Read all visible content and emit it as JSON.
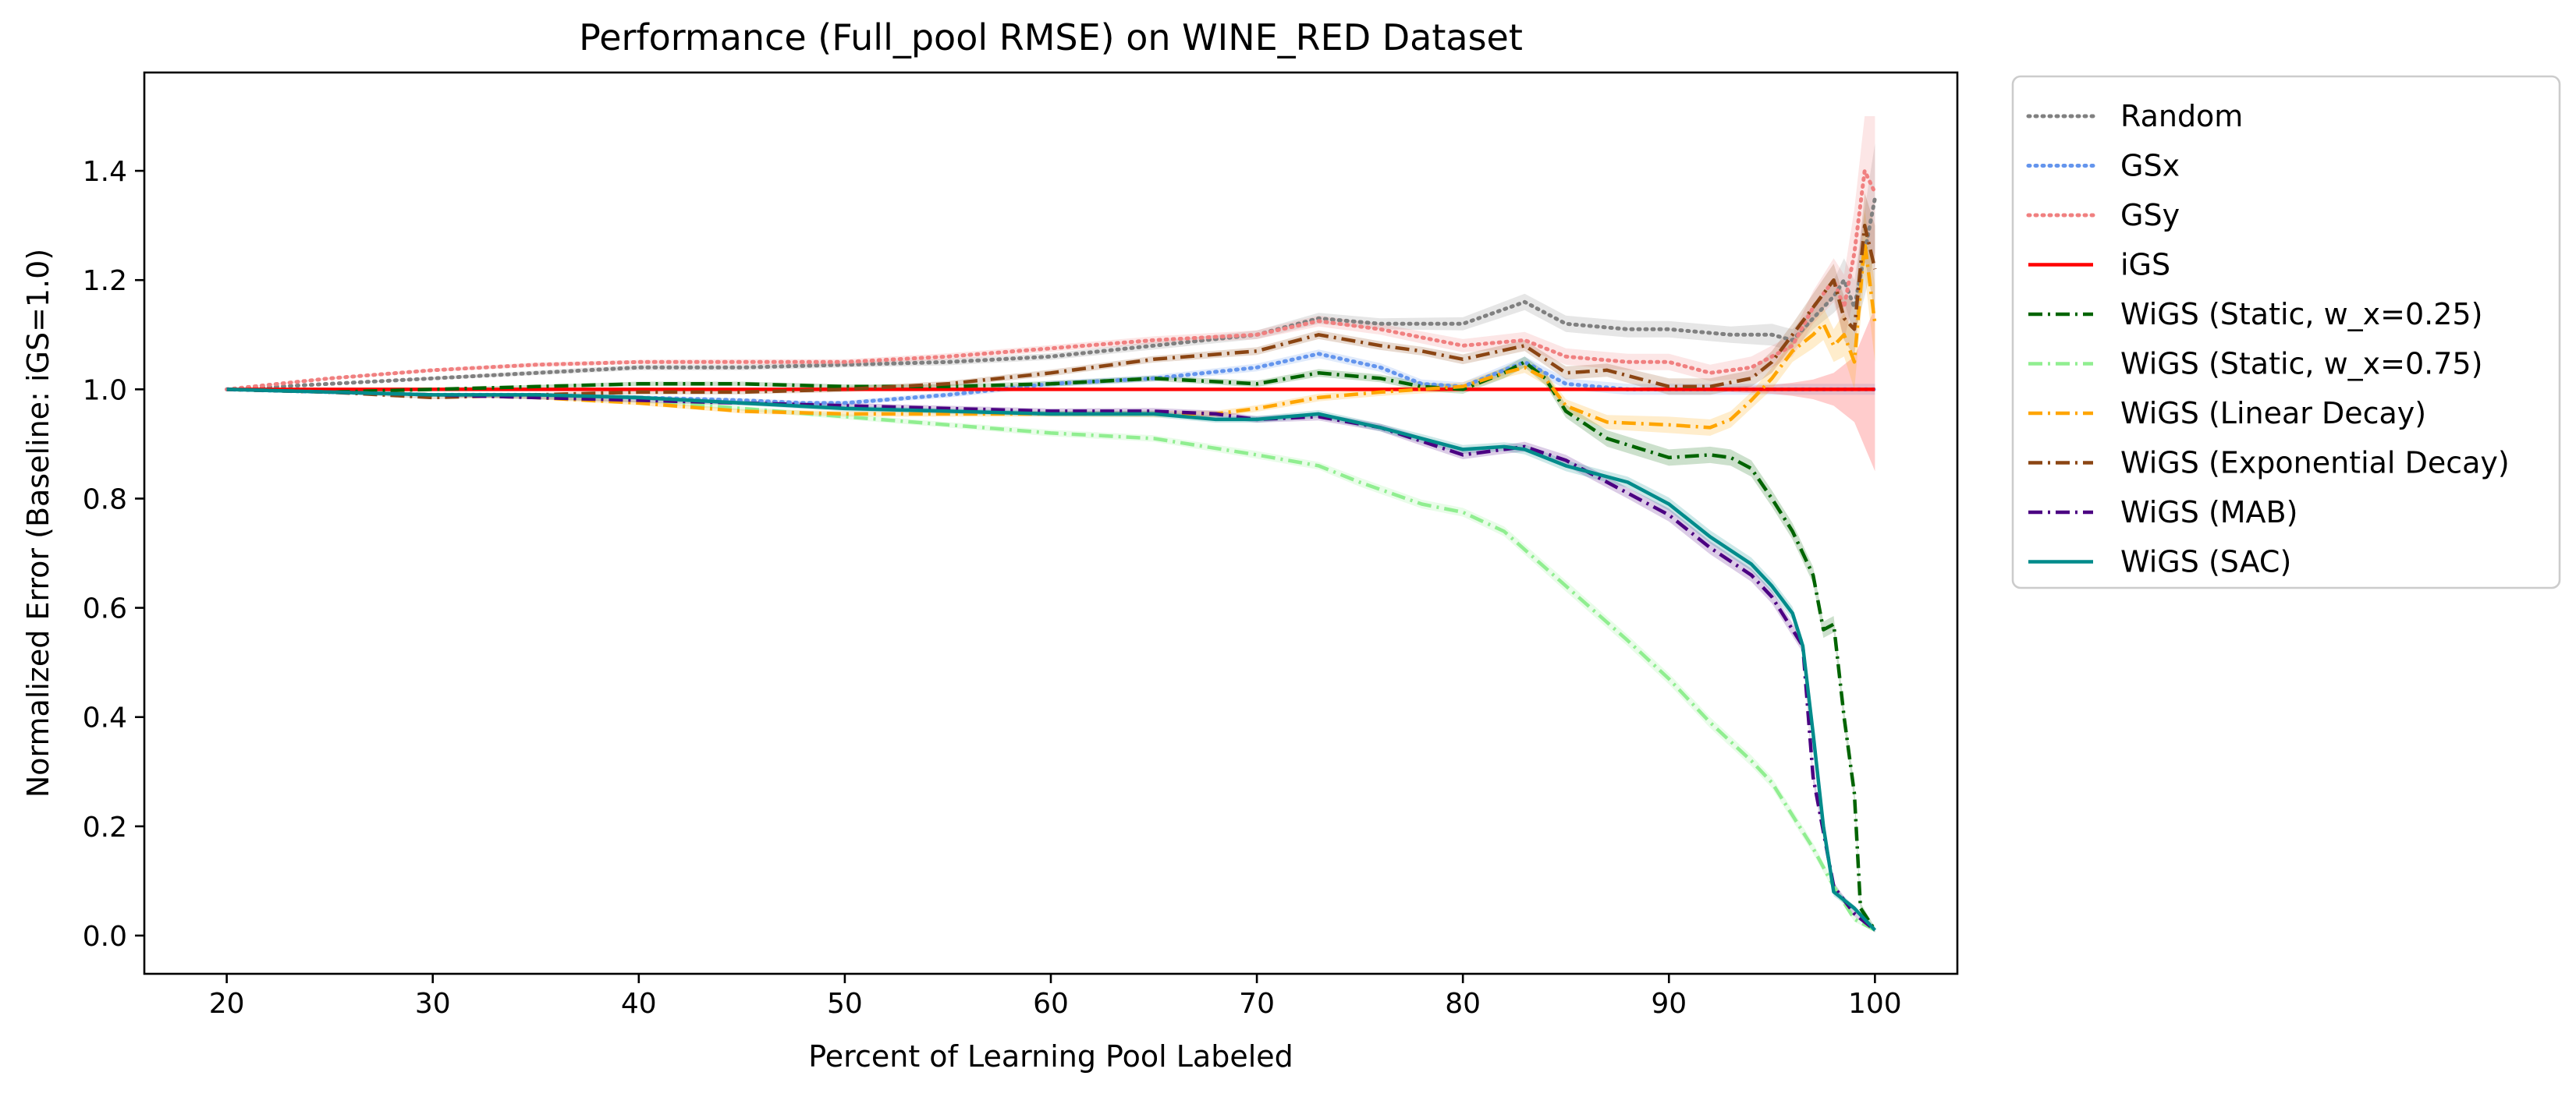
{
  "chart_data": {
    "type": "line",
    "title": "Performance (Full_pool RMSE) on WINE_RED Dataset",
    "xlabel": "Percent of Learning Pool Labeled",
    "ylabel": "Normalized Error (Baseline: iGS=1.0)",
    "xlim": [
      16,
      104
    ],
    "ylim": [
      -0.07,
      1.58
    ],
    "xticks": [
      20,
      30,
      40,
      50,
      60,
      70,
      80,
      90,
      100
    ],
    "yticks": [
      0.0,
      0.2,
      0.4,
      0.6,
      0.8,
      1.0,
      1.2,
      1.4
    ],
    "xtick_labels": [
      "20",
      "30",
      "40",
      "50",
      "60",
      "70",
      "80",
      "90",
      "100"
    ],
    "ytick_labels": [
      "0.0",
      "0.2",
      "0.4",
      "0.6",
      "0.8",
      "1.0",
      "1.2",
      "1.4"
    ],
    "grid": false,
    "legend_position": "outside-right-top",
    "series": [
      {
        "name": "Random",
        "color": "#808080",
        "linestyle": "dotted",
        "x": [
          20,
          25,
          30,
          35,
          40,
          45,
          50,
          55,
          60,
          65,
          70,
          73,
          76,
          80,
          83,
          85,
          88,
          90,
          93,
          95,
          96,
          97,
          98,
          98.5,
          99,
          99.5,
          100
        ],
        "y": [
          1.0,
          1.01,
          1.02,
          1.03,
          1.04,
          1.04,
          1.045,
          1.05,
          1.06,
          1.08,
          1.1,
          1.13,
          1.12,
          1.12,
          1.16,
          1.12,
          1.11,
          1.11,
          1.1,
          1.1,
          1.09,
          1.13,
          1.17,
          1.2,
          1.15,
          1.25,
          1.35
        ],
        "band": [
          0.0,
          0.0,
          0.003,
          0.004,
          0.005,
          0.005,
          0.005,
          0.006,
          0.006,
          0.007,
          0.008,
          0.01,
          0.01,
          0.012,
          0.015,
          0.015,
          0.015,
          0.015,
          0.015,
          0.02,
          0.02,
          0.02,
          0.03,
          0.04,
          0.05,
          0.08,
          0.1
        ]
      },
      {
        "name": "GSx",
        "color": "#6495ED",
        "linestyle": "dotted",
        "x": [
          20,
          25,
          30,
          35,
          40,
          45,
          48,
          50,
          55,
          60,
          65,
          70,
          73,
          76,
          78,
          80,
          83,
          85,
          88,
          90,
          93,
          95,
          96,
          97,
          98,
          99,
          100
        ],
        "y": [
          1.0,
          0.995,
          0.99,
          0.99,
          0.985,
          0.98,
          0.975,
          0.975,
          0.99,
          1.01,
          1.02,
          1.04,
          1.065,
          1.04,
          1.01,
          1.005,
          1.05,
          1.01,
          1.0,
          1.0,
          1.0,
          1.0,
          1.0,
          1.0,
          1.0,
          1.0,
          1.0
        ],
        "band": [
          0.0,
          0.002,
          0.003,
          0.003,
          0.004,
          0.004,
          0.004,
          0.004,
          0.005,
          0.006,
          0.006,
          0.007,
          0.008,
          0.008,
          0.008,
          0.008,
          0.01,
          0.01,
          0.01,
          0.01,
          0.01,
          0.01,
          0.01,
          0.01,
          0.01,
          0.01,
          0.01
        ]
      },
      {
        "name": "GSy",
        "color": "#F08080",
        "linestyle": "dotted",
        "x": [
          20,
          25,
          30,
          35,
          40,
          45,
          50,
          55,
          60,
          65,
          70,
          73,
          76,
          80,
          83,
          85,
          88,
          90,
          92,
          94,
          95,
          96,
          97,
          98,
          98.5,
          99,
          99.5,
          100
        ],
        "y": [
          1.0,
          1.02,
          1.035,
          1.045,
          1.05,
          1.05,
          1.05,
          1.06,
          1.075,
          1.09,
          1.1,
          1.125,
          1.11,
          1.08,
          1.09,
          1.06,
          1.05,
          1.05,
          1.03,
          1.04,
          1.06,
          1.08,
          1.15,
          1.2,
          1.15,
          1.25,
          1.4,
          1.36
        ],
        "band": [
          0.0,
          0.002,
          0.003,
          0.004,
          0.004,
          0.005,
          0.005,
          0.006,
          0.006,
          0.007,
          0.008,
          0.01,
          0.01,
          0.012,
          0.015,
          0.015,
          0.015,
          0.015,
          0.015,
          0.02,
          0.02,
          0.02,
          0.03,
          0.04,
          0.06,
          0.08,
          0.1,
          0.14
        ]
      },
      {
        "name": "iGS",
        "color": "#FF0000",
        "linestyle": "solid",
        "x": [
          20,
          100
        ],
        "y": [
          1.0,
          1.0
        ],
        "band_x": [
          20,
          80,
          90,
          93,
          95,
          96,
          97,
          98,
          99,
          100
        ],
        "band": [
          0.0,
          0.0,
          0.0,
          0.005,
          0.008,
          0.012,
          0.018,
          0.03,
          0.06,
          0.15
        ]
      },
      {
        "name": "WiGS (Static, w_x=0.25)",
        "color": "#006400",
        "linestyle": "dashdot",
        "x": [
          20,
          25,
          30,
          35,
          40,
          45,
          50,
          55,
          60,
          65,
          70,
          73,
          76,
          78,
          80,
          82,
          83,
          84,
          85,
          87,
          90,
          92,
          93,
          94,
          95,
          96,
          97,
          97.5,
          98,
          98.5,
          99,
          99.3,
          100
        ],
        "y": [
          1.0,
          0.995,
          1.0,
          1.005,
          1.01,
          1.01,
          1.005,
          1.005,
          1.01,
          1.02,
          1.01,
          1.03,
          1.02,
          1.005,
          1.0,
          1.03,
          1.05,
          1.02,
          0.96,
          0.91,
          0.875,
          0.88,
          0.875,
          0.855,
          0.8,
          0.74,
          0.66,
          0.56,
          0.57,
          0.4,
          0.26,
          0.05,
          0.01
        ],
        "band": [
          0.0,
          0.002,
          0.003,
          0.003,
          0.004,
          0.004,
          0.004,
          0.004,
          0.005,
          0.005,
          0.006,
          0.007,
          0.007,
          0.008,
          0.008,
          0.01,
          0.01,
          0.012,
          0.012,
          0.015,
          0.015,
          0.015,
          0.015,
          0.015,
          0.015,
          0.015,
          0.015,
          0.015,
          0.015,
          0.015,
          0.015,
          0.01,
          0.005
        ]
      },
      {
        "name": "WiGS (Static, w_x=0.75)",
        "color": "#90EE90",
        "linestyle": "dashdot",
        "x": [
          20,
          25,
          30,
          35,
          40,
          45,
          50,
          55,
          60,
          65,
          70,
          73,
          75,
          78,
          80,
          82,
          85,
          88,
          90,
          92,
          94,
          95,
          96,
          97,
          98,
          99,
          100
        ],
        "y": [
          1.0,
          0.995,
          0.99,
          0.985,
          0.98,
          0.965,
          0.95,
          0.935,
          0.92,
          0.91,
          0.88,
          0.86,
          0.83,
          0.79,
          0.775,
          0.74,
          0.64,
          0.54,
          0.47,
          0.39,
          0.32,
          0.28,
          0.22,
          0.16,
          0.09,
          0.03,
          0.01
        ],
        "band": [
          0.0,
          0.002,
          0.003,
          0.003,
          0.004,
          0.004,
          0.005,
          0.005,
          0.006,
          0.006,
          0.007,
          0.007,
          0.008,
          0.008,
          0.008,
          0.009,
          0.01,
          0.01,
          0.01,
          0.01,
          0.01,
          0.01,
          0.01,
          0.01,
          0.008,
          0.005,
          0.003
        ]
      },
      {
        "name": "WiGS (Linear Decay)",
        "color": "#FFA500",
        "linestyle": "dashdot",
        "x": [
          20,
          25,
          30,
          35,
          40,
          45,
          50,
          55,
          60,
          65,
          68,
          70,
          73,
          76,
          80,
          82,
          83,
          84,
          85,
          87,
          90,
          92,
          93,
          94,
          95,
          96,
          97,
          97.5,
          98,
          98.5,
          99,
          99.5,
          100
        ],
        "y": [
          1.0,
          0.995,
          0.99,
          0.985,
          0.975,
          0.96,
          0.955,
          0.955,
          0.955,
          0.955,
          0.955,
          0.965,
          0.985,
          0.995,
          1.005,
          1.03,
          1.04,
          1.02,
          0.97,
          0.94,
          0.935,
          0.93,
          0.945,
          0.98,
          1.02,
          1.07,
          1.1,
          1.12,
          1.08,
          1.1,
          1.05,
          1.27,
          1.12
        ],
        "band": [
          0.0,
          0.002,
          0.003,
          0.003,
          0.004,
          0.004,
          0.005,
          0.005,
          0.005,
          0.006,
          0.006,
          0.006,
          0.007,
          0.007,
          0.008,
          0.009,
          0.01,
          0.012,
          0.012,
          0.013,
          0.015,
          0.015,
          0.015,
          0.015,
          0.02,
          0.02,
          0.025,
          0.03,
          0.03,
          0.04,
          0.05,
          0.06,
          0.07
        ]
      },
      {
        "name": "WiGS (Exponential Decay)",
        "color": "#8B4513",
        "linestyle": "dashdot",
        "x": [
          20,
          25,
          30,
          35,
          40,
          45,
          50,
          55,
          60,
          65,
          70,
          73,
          76,
          78,
          80,
          83,
          85,
          87,
          90,
          92,
          94,
          95,
          96,
          97,
          98,
          98.5,
          99,
          99.5,
          100
        ],
        "y": [
          1.0,
          0.995,
          0.985,
          0.99,
          0.995,
          0.995,
          1.0,
          1.01,
          1.03,
          1.055,
          1.07,
          1.1,
          1.08,
          1.07,
          1.055,
          1.08,
          1.03,
          1.035,
          1.005,
          1.005,
          1.02,
          1.05,
          1.1,
          1.15,
          1.2,
          1.13,
          1.11,
          1.3,
          1.22
        ],
        "band": [
          0.0,
          0.002,
          0.003,
          0.003,
          0.004,
          0.004,
          0.005,
          0.005,
          0.006,
          0.006,
          0.007,
          0.008,
          0.008,
          0.008,
          0.009,
          0.01,
          0.012,
          0.012,
          0.015,
          0.015,
          0.015,
          0.02,
          0.02,
          0.025,
          0.03,
          0.04,
          0.05,
          0.06,
          0.08
        ]
      },
      {
        "name": "WiGS (MAB)",
        "color": "#4B0082",
        "linestyle": "dashdot",
        "x": [
          20,
          25,
          30,
          35,
          40,
          45,
          50,
          55,
          60,
          65,
          68,
          70,
          73,
          76,
          78,
          80,
          82,
          83,
          85,
          88,
          90,
          92,
          94,
          95,
          96,
          96.5,
          97,
          98,
          99,
          100
        ],
        "y": [
          1.0,
          0.995,
          0.99,
          0.985,
          0.98,
          0.975,
          0.97,
          0.965,
          0.96,
          0.96,
          0.955,
          0.945,
          0.95,
          0.93,
          0.905,
          0.88,
          0.89,
          0.895,
          0.87,
          0.81,
          0.77,
          0.71,
          0.66,
          0.62,
          0.56,
          0.53,
          0.29,
          0.09,
          0.04,
          0.01
        ],
        "band": [
          0.0,
          0.002,
          0.003,
          0.003,
          0.004,
          0.004,
          0.005,
          0.005,
          0.005,
          0.006,
          0.006,
          0.006,
          0.007,
          0.007,
          0.008,
          0.008,
          0.008,
          0.009,
          0.01,
          0.01,
          0.012,
          0.012,
          0.012,
          0.012,
          0.012,
          0.012,
          0.01,
          0.008,
          0.005,
          0.003
        ]
      },
      {
        "name": "WiGS (SAC)",
        "color": "#008B8B",
        "linestyle": "solid",
        "x": [
          20,
          25,
          30,
          35,
          40,
          45,
          50,
          55,
          60,
          65,
          68,
          70,
          73,
          76,
          78,
          80,
          82,
          83,
          85,
          88,
          90,
          92,
          94,
          95,
          96,
          96.5,
          97,
          97.5,
          98,
          99,
          100
        ],
        "y": [
          1.0,
          0.995,
          0.99,
          0.99,
          0.985,
          0.975,
          0.965,
          0.96,
          0.955,
          0.955,
          0.945,
          0.945,
          0.955,
          0.93,
          0.91,
          0.89,
          0.895,
          0.89,
          0.86,
          0.83,
          0.79,
          0.73,
          0.68,
          0.64,
          0.59,
          0.53,
          0.37,
          0.2,
          0.08,
          0.05,
          0.01
        ],
        "band": [
          0.0,
          0.002,
          0.003,
          0.003,
          0.004,
          0.004,
          0.005,
          0.005,
          0.005,
          0.006,
          0.006,
          0.006,
          0.007,
          0.007,
          0.008,
          0.008,
          0.008,
          0.009,
          0.01,
          0.01,
          0.012,
          0.012,
          0.012,
          0.012,
          0.012,
          0.012,
          0.01,
          0.01,
          0.008,
          0.005,
          0.003
        ]
      }
    ]
  }
}
